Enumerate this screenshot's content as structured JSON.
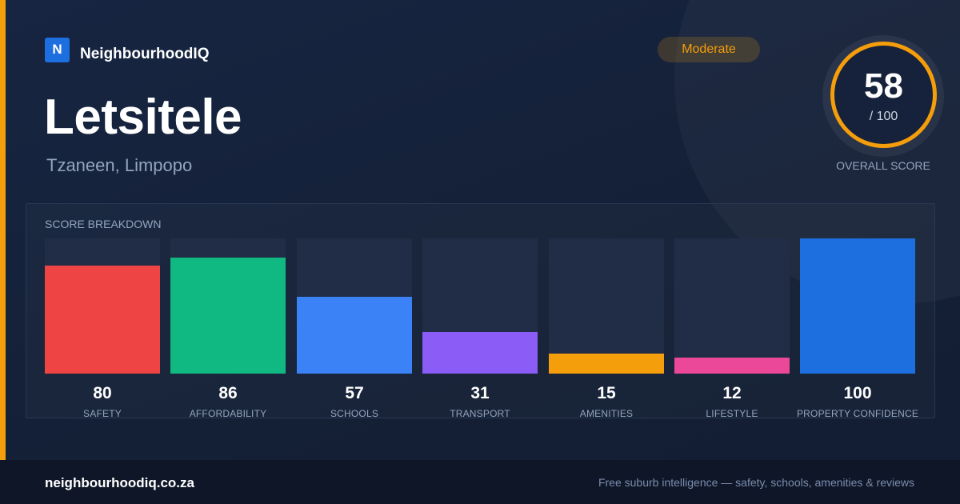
{
  "brand": {
    "logo_letter": "N",
    "name": "NeighbourhoodIQ"
  },
  "suburb": {
    "name": "Letsitele",
    "location": "Tzaneen, Limpopo"
  },
  "rating": {
    "label": "Moderate",
    "color": "#f59e0b"
  },
  "overall": {
    "score": "58",
    "max_label": "/ 100",
    "caption": "OVERALL SCORE"
  },
  "breakdown": {
    "title": "SCORE BREAKDOWN",
    "max": 100,
    "items": [
      {
        "label": "SAFETY",
        "value": "80",
        "color": "#ef4444"
      },
      {
        "label": "AFFORDABILITY",
        "value": "86",
        "color": "#10b981"
      },
      {
        "label": "SCHOOLS",
        "value": "57",
        "color": "#3b82f6"
      },
      {
        "label": "TRANSPORT",
        "value": "31",
        "color": "#8b5cf6"
      },
      {
        "label": "AMENITIES",
        "value": "15",
        "color": "#f59e0b"
      },
      {
        "label": "LIFESTYLE",
        "value": "12",
        "color": "#ec4899"
      },
      {
        "label": "PROPERTY CONFIDENCE",
        "value": "100",
        "color": "#1d6fe0"
      }
    ]
  },
  "footer": {
    "url": "neighbourhoodiq.co.za",
    "tagline": "Free suburb intelligence — safety, schools, amenities & reviews"
  }
}
